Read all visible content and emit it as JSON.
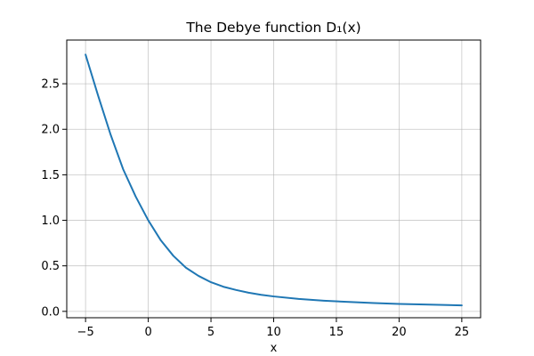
{
  "chart_data": {
    "type": "line",
    "title": "The Debye function D₁(x)",
    "xlabel": "x",
    "ylabel": "",
    "xlim": [
      -6.5,
      26.5
    ],
    "ylim": [
      -0.07,
      2.98
    ],
    "xticks": [
      -5,
      0,
      5,
      10,
      15,
      20,
      25
    ],
    "yticks": [
      0.0,
      0.5,
      1.0,
      1.5,
      2.0,
      2.5
    ],
    "xtick_labels": [
      "−5",
      "0",
      "5",
      "10",
      "15",
      "20",
      "25"
    ],
    "ytick_labels": [
      "0.0",
      "0.5",
      "1.0",
      "1.5",
      "2.0",
      "2.5"
    ],
    "grid": true,
    "legend": "none",
    "series": [
      {
        "color": "#1f77b4",
        "x": [
          -5,
          -4,
          -3,
          -2,
          -1,
          0,
          1,
          2,
          3,
          4,
          5,
          6,
          7,
          8,
          9,
          10,
          12,
          14,
          16,
          18,
          20,
          22,
          25
        ],
        "y": [
          2.82,
          2.37,
          1.94,
          1.56,
          1.26,
          1.0,
          0.78,
          0.61,
          0.48,
          0.39,
          0.32,
          0.27,
          0.235,
          0.205,
          0.182,
          0.164,
          0.137,
          0.117,
          0.103,
          0.091,
          0.082,
          0.075,
          0.066
        ]
      }
    ]
  }
}
